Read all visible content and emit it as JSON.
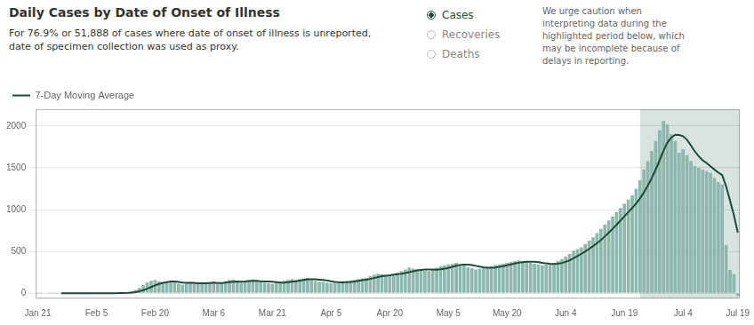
{
  "chart_data": {
    "type": "bar",
    "title": "Daily Cases by Date of Onset of Illness",
    "subtitle": [
      "For 76.9% or 51,888 of cases where date of onset of illness is unreported,",
      "date of specimen collection was used as proxy."
    ],
    "buttons": [
      "Cases",
      "Recoveries",
      "Deaths"
    ],
    "annotations": [
      "We urge caution when\ninterpreting data during the\nhighlighted period below, which\nmay be incomplete because of\ndelays in reporting."
    ],
    "categories": [
      "Jan 21",
      null,
      null,
      null,
      null,
      null,
      null,
      null,
      null,
      null,
      null,
      null,
      null,
      null,
      null,
      "Feb 5",
      null,
      null,
      null,
      null,
      null,
      null,
      null,
      null,
      null,
      null,
      null,
      null,
      null,
      null,
      "Feb 20",
      null,
      null,
      null,
      null,
      null,
      null,
      null,
      null,
      null,
      null,
      null,
      null,
      null,
      null,
      "Mar 6",
      null,
      null,
      null,
      null,
      null,
      null,
      null,
      null,
      null,
      null,
      null,
      null,
      null,
      null,
      "Mar 21",
      null,
      null,
      null,
      null,
      null,
      null,
      null,
      null,
      null,
      null,
      null,
      null,
      null,
      null,
      "Apr 5",
      null,
      null,
      null,
      null,
      null,
      null,
      null,
      null,
      null,
      null,
      null,
      null,
      null,
      null,
      "Apr 20",
      null,
      null,
      null,
      null,
      null,
      null,
      null,
      null,
      null,
      null,
      null,
      null,
      null,
      null,
      "May 5",
      null,
      null,
      null,
      null,
      null,
      null,
      null,
      null,
      null,
      null,
      null,
      null,
      null,
      null,
      "May 20",
      null,
      null,
      null,
      null,
      null,
      null,
      null,
      null,
      null,
      null,
      null,
      null,
      null,
      null,
      "Jun 4",
      null,
      null,
      null,
      null,
      null,
      null,
      null,
      null,
      null,
      null,
      null,
      null,
      null,
      null,
      "Jun 19",
      null,
      null,
      null,
      null,
      null,
      null,
      null,
      null,
      null,
      null,
      null,
      null,
      null,
      null,
      "Jul 4",
      null,
      null,
      null,
      null,
      null,
      null,
      null,
      null,
      null,
      null,
      null,
      null,
      null,
      "Jul 19"
    ],
    "series": [
      {
        "type": "bar",
        "color": "#8eb8ae",
        "values": [
          2,
          1,
          0,
          1,
          2,
          1,
          0,
          1,
          2,
          1,
          2,
          0,
          1,
          0,
          1,
          2,
          1,
          2,
          3,
          1,
          5,
          8,
          10,
          15,
          25,
          40,
          65,
          100,
          130,
          150,
          160,
          145,
          130,
          125,
          150,
          130,
          115,
          105,
          120,
          135,
          125,
          115,
          120,
          125,
          130,
          140,
          115,
          120,
          145,
          160,
          165,
          145,
          125,
          135,
          155,
          165,
          150,
          135,
          125,
          120,
          115,
          125,
          135,
          150,
          160,
          170,
          160,
          170,
          180,
          185,
          160,
          150,
          140,
          135,
          125,
          120,
          125,
          135,
          145,
          150,
          155,
          160,
          170,
          180,
          185,
          205,
          225,
          235,
          230,
          220,
          215,
          230,
          245,
          265,
          285,
          310,
          295,
          285,
          275,
          270,
          265,
          285,
          305,
          325,
          335,
          345,
          355,
          365,
          345,
          335,
          315,
          300,
          285,
          295,
          305,
          315,
          325,
          340,
          345,
          355,
          365,
          375,
          385,
          395,
          385,
          375,
          365,
          355,
          345,
          335,
          345,
          355,
          365,
          385,
          410,
          440,
          470,
          510,
          530,
          550,
          590,
          630,
          670,
          720,
          770,
          820,
          870,
          920,
          970,
          1020,
          1070,
          1120,
          1170,
          1250,
          1350,
          1480,
          1580,
          1700,
          1820,
          1950,
          2060,
          2020,
          1900,
          1820,
          1680,
          1720,
          1650,
          1580,
          1520,
          1500,
          1480,
          1460,
          1440,
          1380,
          1330,
          1300,
          580,
          280,
          230,
          -30
        ]
      },
      {
        "type": "line",
        "name": "7-Day Moving Average",
        "color": "#1c4a38",
        "values": [
          null,
          null,
          null,
          null,
          null,
          null,
          1,
          0.857142857143,
          1,
          1.142857142857,
          1.285714285714,
          1,
          1,
          1,
          1,
          1,
          1,
          1,
          1.428571428571,
          1.428571428571,
          2.142857142857,
          3.142857142857,
          4.285714285714,
          6.285714285714,
          9.571428571429,
          14.857142857143,
          24,
          37.571428571429,
          55,
          75,
          95.714285714286,
          112.857142857143,
          125.714285714286,
          134.285714285714,
          141.428571428571,
          141.428571428571,
          136.428571428571,
          128.571428571429,
          125,
          125.714285714286,
          125.714285714286,
          120.714285714286,
          119.285714285714,
          120.714285714286,
          124.285714285714,
          127.142857142857,
          124.285714285714,
          123.571428571429,
          127.857142857143,
          133.571428571429,
          139.285714285714,
          141.428571428571,
          139.285714285714,
          142.142857142857,
          147.142857142857,
          150,
          148.571428571429,
          144.285714285714,
          141.428571428571,
          140.714285714286,
          137.857142857143,
          133.571428571429,
          129.285714285714,
          129.285714285714,
          132.857142857143,
          139.285714285714,
          145,
          152.857142857143,
          160.714285714286,
          167.857142857143,
          169.285714285714,
          167.857142857143,
          163.571428571429,
          160,
          153.571428571429,
          145,
          136.428571428571,
          132.857142857143,
          132.142857142857,
          133.571428571429,
          136.428571428571,
          141.428571428571,
          148.571428571429,
          156.428571428571,
          163.571428571429,
          172.142857142857,
          182.857142857143,
          194.285714285714,
          204.285714285714,
          211.428571428571,
          216.428571428571,
          222.857142857143,
          228.571428571429,
          234.285714285714,
          241.428571428571,
          252.857142857143,
          263.571428571429,
          273.571428571429,
          280,
          283.571428571429,
          283.571428571429,
          283.571428571429,
          282.857142857143,
          287.142857142857,
          294.285714285714,
          304.285714285714,
          316.428571428571,
          330.714285714286,
          339.285714285714,
          343.571428571429,
          342.142857142857,
          337.142857142857,
          328.571428571429,
          320,
          311.428571428571,
          307.142857142857,
          305.714285714286,
          309.285714285714,
          315.714285714286,
          325.714285714286,
          335.714285714286,
          345.714285714286,
          355.714285714286,
          365.714285714286,
          372.142857142857,
          376.428571428571,
          377.857142857143,
          376.428571428571,
          372.142857142857,
          365,
          357.857142857143,
          353.571428571429,
          352.142857142857,
          355,
          362.857142857143,
          376.428571428571,
          395.714285714286,
          419.285714285714,
          444.285714285714,
          470.714285714286,
          500,
          531.428571428571,
          564.285714285714,
          600,
          637.142857142857,
          678.571428571429,
          724.285714285714,
          771.428571428571,
          820,
          870,
          920,
          970,
          1020,
          1074.285714285714,
          1135.714285714286,
          1208.571428571429,
          1288.571428571429,
          1378.571428571429,
          1478.571428571429,
          1590,
          1705.714285714286,
          1801.428571428571,
          1861.428571428571,
          1895.714285714286,
          1892.857142857143,
          1878.571428571429,
          1835.714285714286,
          1767.142857142857,
          1695.714285714286,
          1638.571428571429,
          1590,
          1558.571428571429,
          1518.571428571429,
          1480,
          1444.285714285714,
          1412.857142857143,
          1281.428571428571,
          1110,
          934.285714285714,
          724.285714285714
        ]
      }
    ],
    "highlight": {
      "start": 154,
      "color": "#d8e4e2"
    },
    "ylim": [
      -60,
      2200
    ],
    "yticks": [
      0,
      500,
      1000,
      1500,
      2000
    ],
    "grid": true,
    "legend": "upper left"
  }
}
